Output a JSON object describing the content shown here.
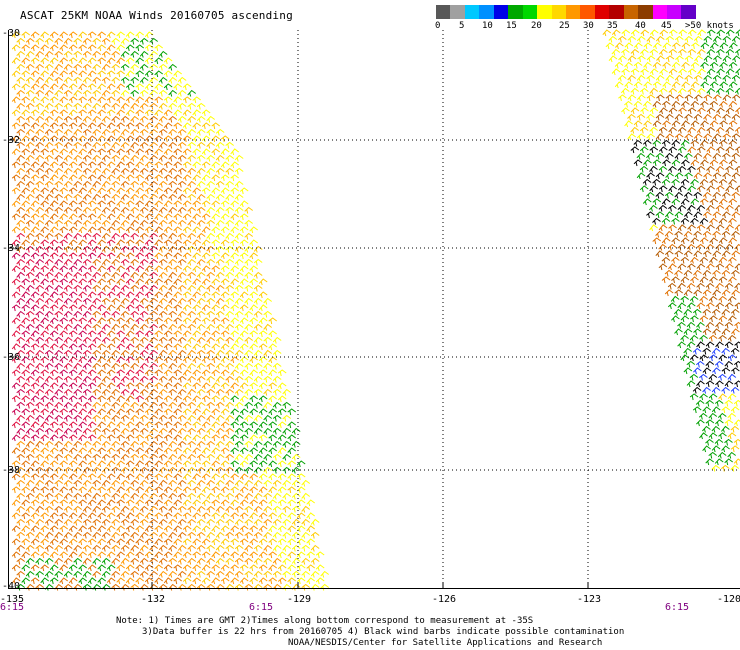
{
  "title": "ASCAT 25KM NOAA Winds 20160705 ascending",
  "colorbar": {
    "colors": [
      "#585858",
      "#a0a0a0",
      "#00c8ff",
      "#0090ff",
      "#0000e8",
      "#00a800",
      "#00d800",
      "#ffff00",
      "#ffd800",
      "#ff9800",
      "#ff5800",
      "#e00000",
      "#b40000",
      "#c86400",
      "#8c3c00",
      "#ff00ff",
      "#c800ff",
      "#6400c8"
    ],
    "labels": [
      "0",
      "5",
      "10",
      "15",
      "20",
      "25",
      "30",
      "35",
      "40",
      "45",
      ">50 knots"
    ]
  },
  "axes": {
    "lat_labels": [
      "-30",
      "-32",
      "-34",
      "-36",
      "-38",
      "-40"
    ],
    "lon_labels": [
      "-135",
      "-132",
      "-129",
      "-126",
      "-123",
      "-120"
    ]
  },
  "pass_times": [
    "6:15",
    "6:15",
    "6:15"
  ],
  "notes": [
    "Note: 1) Times are GMT 2)Times along bottom correspond to measurement at -35S",
    "3)Data buffer is 22 hrs from 20160705 4) Black wind barbs indicate possible contamination",
    "NOAA/NESDIS/Center for Satellite Applications and Research"
  ],
  "barb_colors": {
    "green": "#00a000",
    "yellow": "#ffff00",
    "gold": "#ffcc00",
    "orange": "#ff9900",
    "dark_orange": "#e07000",
    "brown": "#b45a00",
    "red": "#e01040",
    "magenta": "#c80050",
    "blue": "#2040ff",
    "black": "#000000"
  }
}
